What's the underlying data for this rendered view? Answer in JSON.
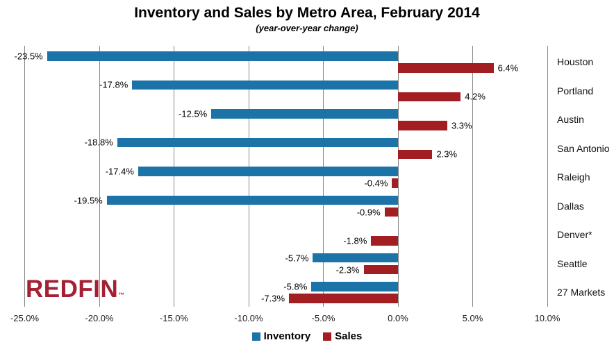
{
  "chart_data": {
    "type": "bar",
    "orientation": "horizontal",
    "title": "Inventory and Sales by Metro Area, February 2014",
    "subtitle": "(year-over-year change)",
    "categories": [
      "Houston",
      "Portland",
      "Austin",
      "San Antonio",
      "Raleigh",
      "Dallas",
      "Denver*",
      "Seattle",
      "27 Markets"
    ],
    "series": [
      {
        "name": "Inventory",
        "color": "#1B73A8",
        "values": [
          -23.5,
          -17.8,
          -12.5,
          -18.8,
          -17.4,
          -19.5,
          null,
          -5.7,
          -5.8
        ]
      },
      {
        "name": "Sales",
        "color": "#A21E22",
        "values": [
          6.4,
          4.2,
          3.3,
          2.3,
          -0.4,
          -0.9,
          -1.8,
          -2.3,
          -7.3
        ]
      }
    ],
    "value_labels": {
      "Inventory": [
        "-23.5%",
        "-17.8%",
        "-12.5%",
        "-18.8%",
        "-17.4%",
        "-19.5%",
        null,
        "-5.7%",
        "-5.8%"
      ],
      "Sales": [
        "6.4%",
        "4.2%",
        "3.3%",
        "2.3%",
        "-0.4%",
        "-0.9%",
        "-1.8%",
        "-2.3%",
        "-7.3%"
      ]
    },
    "xlim": [
      -25,
      10
    ],
    "x_ticks": [
      {
        "value": -25,
        "label": "-25.0%"
      },
      {
        "value": -20,
        "label": "-20.0%"
      },
      {
        "value": -15,
        "label": "-15.0%"
      },
      {
        "value": -10,
        "label": "-10.0%"
      },
      {
        "value": -5,
        "label": "-5.0%"
      },
      {
        "value": 0,
        "label": "0.0%"
      },
      {
        "value": 5,
        "label": "5.0%"
      },
      {
        "value": 10,
        "label": "10.0%"
      }
    ],
    "grid": true,
    "grid_color": "#878787",
    "legend_position": "bottom"
  },
  "legend": {
    "inventory_label": "Inventory",
    "sales_label": "Sales"
  },
  "logo": {
    "text": "REDFIN",
    "tm": "™",
    "color": "#A32035"
  }
}
